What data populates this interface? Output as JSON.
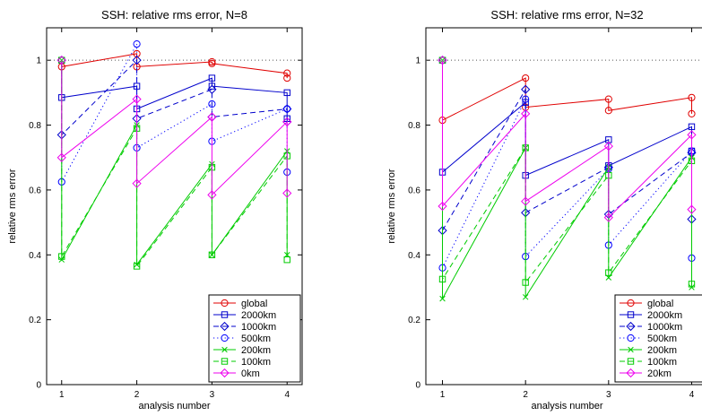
{
  "colors": {
    "global": "#e00000",
    "2000km": "#0000cc",
    "1000km": "#0000cc",
    "500km": "#0000ff",
    "200km": "#00cc00",
    "100km": "#00cc00",
    "0km": "#ee00ee",
    "reference": "#555555"
  },
  "chart_data": [
    {
      "type": "line",
      "title": "SSH: relative rms error, N=8",
      "xlabel": "analysis number",
      "ylabel": "relative rms error",
      "xlim": [
        0.8,
        4.2
      ],
      "ylim": [
        0,
        1.1
      ],
      "xticks": [
        "1",
        "2",
        "3",
        "4"
      ],
      "yticks": [
        "0",
        "0.2",
        "0.4",
        "0.6",
        "0.8",
        "1"
      ],
      "reference_line": 1.0,
      "legend_position": "bottom-right",
      "series": [
        {
          "name": "global",
          "style": "solid",
          "marker": "circle",
          "color_key": "global",
          "points": [
            [
              1,
              1.0
            ],
            [
              1,
              0.98
            ],
            [
              2,
              1.02
            ],
            [
              2,
              0.98
            ],
            [
              3,
              0.995
            ],
            [
              3,
              0.99
            ],
            [
              4,
              0.96
            ],
            [
              4,
              0.945
            ]
          ]
        },
        {
          "name": "2000km",
          "style": "solid",
          "marker": "square",
          "color_key": "2000km",
          "points": [
            [
              1,
              1.0
            ],
            [
              1,
              0.885
            ],
            [
              2,
              0.92
            ],
            [
              2,
              0.85
            ],
            [
              3,
              0.945
            ],
            [
              3,
              0.92
            ],
            [
              4,
              0.9
            ],
            [
              4,
              0.82
            ]
          ]
        },
        {
          "name": "1000km",
          "style": "dashed",
          "marker": "diamond",
          "color_key": "1000km",
          "points": [
            [
              1,
              1.0
            ],
            [
              1,
              0.77
            ],
            [
              2,
              1.0
            ],
            [
              2,
              0.82
            ],
            [
              3,
              0.91
            ],
            [
              3,
              0.825
            ],
            [
              4,
              0.85
            ],
            [
              4,
              0.81
            ]
          ]
        },
        {
          "name": "500km",
          "style": "dotted",
          "marker": "circle",
          "color_key": "500km",
          "points": [
            [
              1,
              1.0
            ],
            [
              1,
              0.625
            ],
            [
              2,
              1.05
            ],
            [
              2,
              0.73
            ],
            [
              3,
              0.865
            ],
            [
              3,
              0.75
            ],
            [
              4,
              0.85
            ],
            [
              4,
              0.655
            ]
          ]
        },
        {
          "name": "200km",
          "style": "solid",
          "marker": "x",
          "color_key": "200km",
          "points": [
            [
              1,
              1.0
            ],
            [
              1,
              0.385
            ],
            [
              2,
              0.8
            ],
            [
              2,
              0.37
            ],
            [
              3,
              0.68
            ],
            [
              3,
              0.4
            ],
            [
              4,
              0.72
            ],
            [
              4,
              0.4
            ]
          ]
        },
        {
          "name": "100km",
          "style": "dashed",
          "marker": "square",
          "color_key": "100km",
          "points": [
            [
              1,
              1.0
            ],
            [
              1,
              0.395
            ],
            [
              2,
              0.79
            ],
            [
              2,
              0.365
            ],
            [
              3,
              0.67
            ],
            [
              3,
              0.4
            ],
            [
              4,
              0.705
            ],
            [
              4,
              0.385
            ]
          ]
        },
        {
          "name": "0km",
          "style": "solid",
          "marker": "diamond",
          "color_key": "0km",
          "points": [
            [
              1,
              1.0
            ],
            [
              1,
              0.7
            ],
            [
              2,
              0.88
            ],
            [
              2,
              0.62
            ],
            [
              3,
              0.825
            ],
            [
              3,
              0.585
            ],
            [
              4,
              0.81
            ],
            [
              4,
              0.59
            ]
          ]
        }
      ]
    },
    {
      "type": "line",
      "title": "SSH: relative rms error, N=32",
      "xlabel": "analysis number",
      "ylabel": "relative rms error",
      "xlim": [
        0.8,
        4.2
      ],
      "ylim": [
        0,
        1.1
      ],
      "xticks": [
        "1",
        "2",
        "3",
        "4"
      ],
      "yticks": [
        "0",
        "0.2",
        "0.4",
        "0.6",
        "0.8",
        "1"
      ],
      "reference_line": 1.0,
      "legend_position": "bottom-right",
      "series": [
        {
          "name": "global",
          "style": "solid",
          "marker": "circle",
          "color_key": "global",
          "points": [
            [
              1,
              1.0
            ],
            [
              1,
              0.815
            ],
            [
              2,
              0.945
            ],
            [
              2,
              0.855
            ],
            [
              3,
              0.88
            ],
            [
              3,
              0.845
            ],
            [
              4,
              0.885
            ],
            [
              4,
              0.835
            ]
          ]
        },
        {
          "name": "2000km",
          "style": "solid",
          "marker": "square",
          "color_key": "2000km",
          "points": [
            [
              1,
              1.0
            ],
            [
              1,
              0.655
            ],
            [
              2,
              0.87
            ],
            [
              2,
              0.645
            ],
            [
              3,
              0.755
            ],
            [
              3,
              0.675
            ],
            [
              4,
              0.795
            ],
            [
              4,
              0.72
            ]
          ]
        },
        {
          "name": "1000km",
          "style": "dashed",
          "marker": "diamond",
          "color_key": "1000km",
          "points": [
            [
              1,
              1.0
            ],
            [
              1,
              0.475
            ],
            [
              2,
              0.91
            ],
            [
              2,
              0.53
            ],
            [
              3,
              0.67
            ],
            [
              3,
              0.525
            ],
            [
              4,
              0.715
            ],
            [
              4,
              0.51
            ]
          ]
        },
        {
          "name": "500km",
          "style": "dotted",
          "marker": "circle",
          "color_key": "500km",
          "points": [
            [
              1,
              1.0
            ],
            [
              1,
              0.36
            ],
            [
              2,
              0.88
            ],
            [
              2,
              0.395
            ],
            [
              3,
              0.665
            ],
            [
              3,
              0.43
            ],
            [
              4,
              0.72
            ],
            [
              4,
              0.39
            ]
          ]
        },
        {
          "name": "200km",
          "style": "solid",
          "marker": "x",
          "color_key": "200km",
          "points": [
            [
              1,
              1.0
            ],
            [
              1,
              0.265
            ],
            [
              2,
              0.73
            ],
            [
              2,
              0.27
            ],
            [
              3,
              0.67
            ],
            [
              3,
              0.33
            ],
            [
              4,
              0.7
            ],
            [
              4,
              0.3
            ]
          ]
        },
        {
          "name": "100km",
          "style": "dashed",
          "marker": "square",
          "color_key": "100km",
          "points": [
            [
              1,
              1.0
            ],
            [
              1,
              0.325
            ],
            [
              2,
              0.73
            ],
            [
              2,
              0.315
            ],
            [
              3,
              0.645
            ],
            [
              3,
              0.345
            ],
            [
              4,
              0.69
            ],
            [
              4,
              0.31
            ]
          ]
        },
        {
          "name": "20km",
          "style": "solid",
          "marker": "diamond",
          "color_key": "0km",
          "points": [
            [
              1,
              1.0
            ],
            [
              1,
              0.55
            ],
            [
              2,
              0.835
            ],
            [
              2,
              0.565
            ],
            [
              3,
              0.735
            ],
            [
              3,
              0.515
            ],
            [
              4,
              0.77
            ],
            [
              4,
              0.54
            ]
          ]
        }
      ]
    }
  ]
}
